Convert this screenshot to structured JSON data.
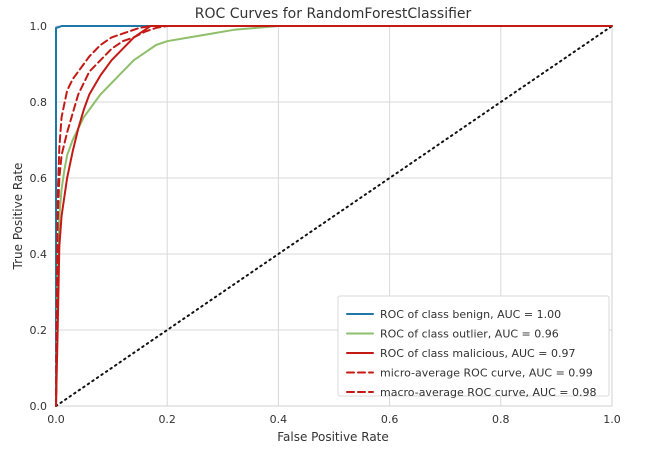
{
  "chart_data": {
    "type": "line",
    "title": "ROC Curves for RandomForestClassifier",
    "xlabel": "False Positive Rate",
    "ylabel": "True Positive Rate",
    "xlim": [
      0.0,
      1.0
    ],
    "ylim": [
      0.0,
      1.0
    ],
    "xticks": [
      "0.0",
      "0.2",
      "0.4",
      "0.6",
      "0.8",
      "1.0"
    ],
    "yticks": [
      "0.0",
      "0.2",
      "0.4",
      "0.6",
      "0.8",
      "1.0"
    ],
    "grid": true,
    "legend_position": "lower-right",
    "series": [
      {
        "name": "ROC of class benign, AUC = 1.00",
        "color": "#1f77a8",
        "style": "solid",
        "x": [
          0.0,
          0.0,
          0.005,
          0.01,
          1.0
        ],
        "y": [
          0.0,
          0.995,
          0.997,
          1.0,
          1.0
        ]
      },
      {
        "name": "ROC of class outlier, AUC = 0.96",
        "color": "#8fbf6a",
        "style": "solid",
        "x": [
          0.0,
          0.003,
          0.006,
          0.01,
          0.015,
          0.02,
          0.03,
          0.04,
          0.05,
          0.06,
          0.08,
          0.1,
          0.12,
          0.14,
          0.16,
          0.18,
          0.2,
          0.24,
          0.28,
          0.32,
          0.36,
          0.4,
          1.0
        ],
        "y": [
          0.0,
          0.33,
          0.5,
          0.57,
          0.62,
          0.66,
          0.7,
          0.73,
          0.76,
          0.78,
          0.82,
          0.85,
          0.88,
          0.91,
          0.93,
          0.95,
          0.96,
          0.97,
          0.98,
          0.99,
          0.995,
          1.0,
          1.0
        ]
      },
      {
        "name": "ROC of class malicious, AUC = 0.97",
        "color": "#c41a16",
        "style": "solid",
        "x": [
          0.0,
          0.003,
          0.006,
          0.01,
          0.015,
          0.02,
          0.03,
          0.04,
          0.05,
          0.06,
          0.08,
          0.1,
          0.12,
          0.14,
          0.16,
          0.17,
          0.2,
          1.0
        ],
        "y": [
          0.0,
          0.2,
          0.42,
          0.5,
          0.55,
          0.6,
          0.67,
          0.73,
          0.78,
          0.82,
          0.87,
          0.91,
          0.94,
          0.97,
          0.99,
          1.0,
          1.0,
          1.0
        ]
      },
      {
        "name": "micro-average ROC curve, AUC = 0.99",
        "color": "#c41a16",
        "style": "dashed",
        "x": [
          0.0,
          0.003,
          0.006,
          0.01,
          0.02,
          0.03,
          0.04,
          0.05,
          0.06,
          0.08,
          0.1,
          0.12,
          0.15,
          0.17,
          0.2,
          1.0
        ],
        "y": [
          0.0,
          0.55,
          0.68,
          0.76,
          0.83,
          0.86,
          0.88,
          0.9,
          0.92,
          0.95,
          0.97,
          0.98,
          0.995,
          1.0,
          1.0,
          1.0
        ]
      },
      {
        "name": "macro-average ROC curve, AUC = 0.98",
        "color": "#c41a16",
        "style": "dashed",
        "x": [
          0.0,
          0.003,
          0.006,
          0.01,
          0.02,
          0.03,
          0.04,
          0.05,
          0.06,
          0.08,
          0.1,
          0.12,
          0.14,
          0.16,
          0.18,
          0.2,
          1.0
        ],
        "y": [
          0.0,
          0.48,
          0.6,
          0.66,
          0.72,
          0.77,
          0.82,
          0.85,
          0.88,
          0.91,
          0.94,
          0.96,
          0.97,
          0.985,
          0.995,
          1.0,
          1.0
        ]
      }
    ],
    "diagonal": {
      "x": [
        0.0,
        1.0
      ],
      "y": [
        0.0,
        1.0
      ],
      "color": "#111111",
      "style": "dotted"
    }
  }
}
